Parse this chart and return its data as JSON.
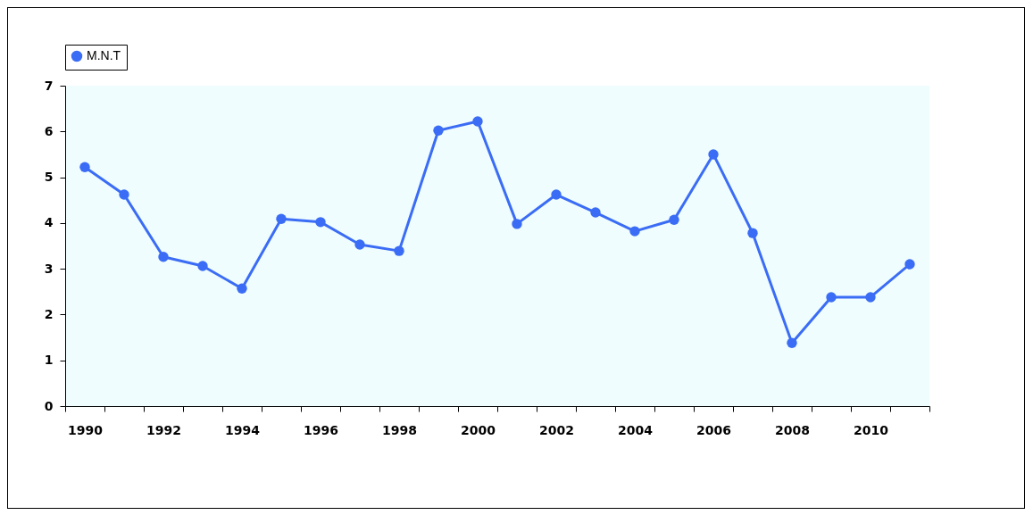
{
  "chart_data": {
    "type": "line",
    "categories": [
      "1990",
      null,
      "1992",
      null,
      "1994",
      null,
      "1996",
      null,
      "1998",
      null,
      "2000",
      null,
      "2002",
      null,
      "2004",
      null,
      "2006",
      null,
      "2008",
      null,
      "2010",
      null
    ],
    "series": [
      {
        "name": "M.N.T",
        "color": "#3b6cf5",
        "values": [
          5.22,
          4.62,
          3.26,
          3.06,
          2.57,
          4.09,
          4.02,
          3.53,
          3.39,
          6.02,
          6.22,
          3.98,
          4.62,
          4.23,
          3.82,
          4.07,
          5.5,
          3.78,
          1.38,
          2.38,
          2.38,
          3.1
        ]
      }
    ],
    "ylim": [
      0,
      7
    ],
    "yticks": [
      0,
      1,
      2,
      3,
      4,
      5,
      6,
      7
    ],
    "grid": false,
    "legend": "top",
    "marker": "circle",
    "line_style": "solid"
  }
}
